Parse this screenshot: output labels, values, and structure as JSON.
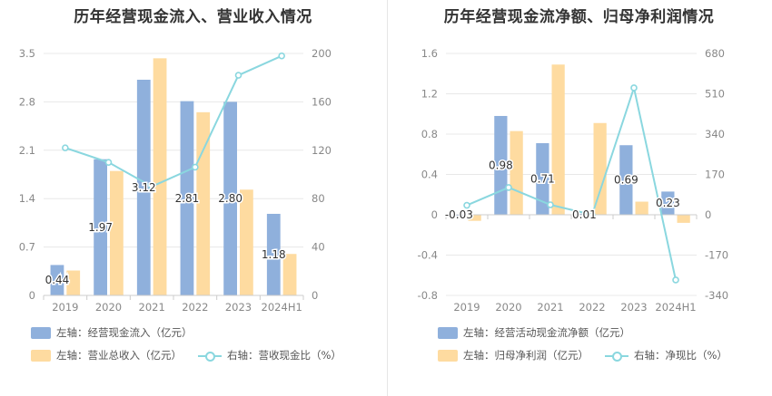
{
  "left": {
    "title": "历年经营现金流入、营业收入情况",
    "legend": {
      "bar1": "左轴：经营现金流入（亿元）",
      "bar2": "左轴：营业总收入（亿元）",
      "line": "右轴：营收现金比（%）"
    }
  },
  "right": {
    "title": "历年经营现金流净额、归母净利润情况",
    "legend": {
      "bar1": "左轴：经营活动现金流净额（亿元）",
      "bar2": "左轴：归母净利润（亿元）",
      "line": "右轴：净现比（%）"
    }
  },
  "colors": {
    "bar1": "#8fb0dc",
    "bar2": "#fedba0",
    "line": "#8ad7df",
    "grid": "#e8e8e8",
    "axis": "#cccccc",
    "tick": "#888888"
  },
  "chart_data": [
    {
      "type": "bar",
      "categories": [
        "2019",
        "2020",
        "2021",
        "2022",
        "2023",
        "2024H1"
      ],
      "series": [
        {
          "name": "左轴：经营现金流入（亿元）",
          "axis": "left",
          "values": [
            0.44,
            1.97,
            3.12,
            2.81,
            2.8,
            1.18
          ],
          "labels": [
            "0.44",
            "1.97",
            "3.12",
            "2.81",
            "2.80",
            "1.18"
          ]
        },
        {
          "name": "左轴：营业总收入（亿元）",
          "axis": "left",
          "values": [
            0.36,
            1.8,
            3.43,
            2.65,
            1.53,
            0.6
          ]
        },
        {
          "name": "右轴：营收现金比（%）",
          "axis": "right",
          "type": "line",
          "values": [
            122,
            110,
            90,
            106,
            182,
            198
          ]
        }
      ],
      "left_axis": {
        "min": 0,
        "max": 3.5,
        "ticks": [
          "0",
          "0.7",
          "1.4",
          "2.1",
          "2.8",
          "3.5"
        ]
      },
      "right_axis": {
        "min": 0,
        "max": 200,
        "ticks": [
          "0",
          "40",
          "80",
          "120",
          "160",
          "200"
        ]
      }
    },
    {
      "type": "bar",
      "categories": [
        "2019",
        "2020",
        "2021",
        "2022",
        "2023",
        "2024H1"
      ],
      "series": [
        {
          "name": "左轴：经营活动现金流净额（亿元）",
          "axis": "left",
          "values": [
            -0.03,
            0.98,
            0.71,
            0.01,
            0.69,
            0.23
          ],
          "labels": [
            "-0.03",
            "0.98",
            "0.71",
            "0.01",
            "0.69",
            "0.23"
          ]
        },
        {
          "name": "左轴：归母净利润（亿元）",
          "axis": "left",
          "values": [
            -0.06,
            0.83,
            1.49,
            0.91,
            0.13,
            -0.08
          ]
        },
        {
          "name": "右轴：净现比（%）",
          "axis": "right",
          "type": "line",
          "values": [
            40,
            115,
            42,
            0,
            535,
            -275
          ]
        }
      ],
      "left_axis": {
        "min": -0.8,
        "max": 1.6,
        "ticks": [
          "-0.8",
          "-0.4",
          "0",
          "0.4",
          "0.8",
          "1.2",
          "1.6"
        ]
      },
      "right_axis": {
        "min": -340,
        "max": 680,
        "ticks": [
          "-340",
          "-170",
          "0",
          "170",
          "340",
          "510",
          "680"
        ]
      }
    }
  ]
}
